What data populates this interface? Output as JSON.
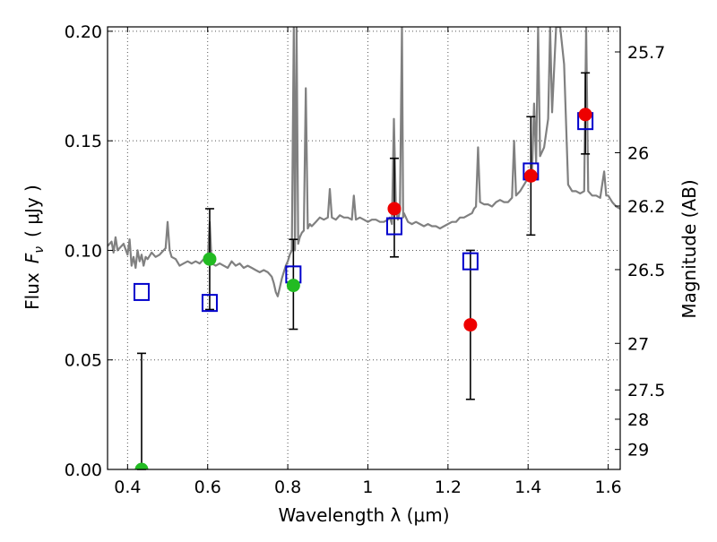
{
  "chart_data": {
    "type": "scatter",
    "xlabel": "Wavelength  λ (μm)",
    "ylabel": "Flux  F_ν  ( μJy )",
    "ylabel_parts": {
      "flux": "Flux",
      "symbol": "F",
      "subscript": "ν",
      "unit": "( μJy )"
    },
    "right_ylabel": "Magnitude (AB)",
    "xlim": [
      0.35,
      1.63
    ],
    "ylim": [
      0.0,
      0.202
    ],
    "grid": true,
    "x_ticks": [
      {
        "value": 0.4,
        "label": "0.4"
      },
      {
        "value": 0.6,
        "label": "0.6"
      },
      {
        "value": 0.8,
        "label": "0.8"
      },
      {
        "value": 1.0,
        "label": "1"
      },
      {
        "value": 1.2,
        "label": "1.2"
      },
      {
        "value": 1.4,
        "label": "1.4"
      },
      {
        "value": 1.6,
        "label": "1.6"
      }
    ],
    "y_ticks": [
      {
        "value": 0.0,
        "label": "0.00"
      },
      {
        "value": 0.05,
        "label": "0.05"
      },
      {
        "value": 0.1,
        "label": "0.10"
      },
      {
        "value": 0.15,
        "label": "0.15"
      },
      {
        "value": 0.2,
        "label": "0.20"
      }
    ],
    "right_ticks": [
      {
        "mag": 25.7,
        "label": "25.7"
      },
      {
        "mag": 26.0,
        "label": "26"
      },
      {
        "mag": 26.2,
        "label": "26.2"
      },
      {
        "mag": 26.5,
        "label": "26.5"
      },
      {
        "mag": 27.0,
        "label": "27"
      },
      {
        "mag": 27.5,
        "label": "27.5"
      },
      {
        "mag": 28.0,
        "label": "28"
      },
      {
        "mag": 29.0,
        "label": "29"
      }
    ],
    "colors": {
      "model": "#808080",
      "green": "#22bb22",
      "red": "#ee0000",
      "squares": "#0000cc",
      "errorbar": "#000000",
      "grid": "#555555"
    },
    "observed_points": [
      {
        "x": 0.435,
        "y": 0.0,
        "yerr_low": 0.0,
        "yerr_high": 0.053,
        "color": "green"
      },
      {
        "x": 0.605,
        "y": 0.096,
        "yerr_low": 0.073,
        "yerr_high": 0.119,
        "color": "green"
      },
      {
        "x": 0.814,
        "y": 0.084,
        "yerr_low": 0.064,
        "yerr_high": 0.105,
        "color": "green"
      },
      {
        "x": 1.066,
        "y": 0.119,
        "yerr_low": 0.097,
        "yerr_high": 0.142,
        "color": "red"
      },
      {
        "x": 1.256,
        "y": 0.066,
        "yerr_low": 0.032,
        "yerr_high": 0.1,
        "color": "red"
      },
      {
        "x": 1.407,
        "y": 0.134,
        "yerr_low": 0.107,
        "yerr_high": 0.161,
        "color": "red"
      },
      {
        "x": 1.543,
        "y": 0.162,
        "yerr_low": 0.144,
        "yerr_high": 0.181,
        "color": "red"
      }
    ],
    "model_points": [
      {
        "x": 0.435,
        "y": 0.081
      },
      {
        "x": 0.605,
        "y": 0.076
      },
      {
        "x": 0.814,
        "y": 0.089
      },
      {
        "x": 1.066,
        "y": 0.111
      },
      {
        "x": 1.256,
        "y": 0.095
      },
      {
        "x": 1.407,
        "y": 0.136
      },
      {
        "x": 1.543,
        "y": 0.159
      }
    ],
    "model_spectrum": [
      [
        0.35,
        0.102
      ],
      [
        0.36,
        0.104
      ],
      [
        0.365,
        0.099
      ],
      [
        0.37,
        0.106
      ],
      [
        0.375,
        0.1
      ],
      [
        0.38,
        0.101
      ],
      [
        0.39,
        0.103
      ],
      [
        0.4,
        0.098
      ],
      [
        0.405,
        0.105
      ],
      [
        0.41,
        0.093
      ],
      [
        0.415,
        0.097
      ],
      [
        0.42,
        0.092
      ],
      [
        0.425,
        0.1
      ],
      [
        0.43,
        0.095
      ],
      [
        0.435,
        0.098
      ],
      [
        0.44,
        0.093
      ],
      [
        0.445,
        0.097
      ],
      [
        0.45,
        0.096
      ],
      [
        0.46,
        0.099
      ],
      [
        0.47,
        0.097
      ],
      [
        0.48,
        0.098
      ],
      [
        0.49,
        0.1
      ],
      [
        0.495,
        0.101
      ],
      [
        0.5,
        0.113
      ],
      [
        0.505,
        0.1
      ],
      [
        0.51,
        0.097
      ],
      [
        0.52,
        0.096
      ],
      [
        0.53,
        0.093
      ],
      [
        0.54,
        0.094
      ],
      [
        0.55,
        0.095
      ],
      [
        0.56,
        0.094
      ],
      [
        0.57,
        0.095
      ],
      [
        0.58,
        0.094
      ],
      [
        0.59,
        0.096
      ],
      [
        0.6,
        0.095
      ],
      [
        0.605,
        0.113
      ],
      [
        0.61,
        0.094
      ],
      [
        0.62,
        0.093
      ],
      [
        0.63,
        0.094
      ],
      [
        0.64,
        0.093
      ],
      [
        0.65,
        0.092
      ],
      [
        0.66,
        0.095
      ],
      [
        0.67,
        0.093
      ],
      [
        0.68,
        0.094
      ],
      [
        0.69,
        0.092
      ],
      [
        0.7,
        0.093
      ],
      [
        0.71,
        0.092
      ],
      [
        0.72,
        0.091
      ],
      [
        0.73,
        0.09
      ],
      [
        0.74,
        0.091
      ],
      [
        0.75,
        0.09
      ],
      [
        0.76,
        0.088
      ],
      [
        0.765,
        0.085
      ],
      [
        0.77,
        0.081
      ],
      [
        0.775,
        0.079
      ],
      [
        0.78,
        0.083
      ],
      [
        0.785,
        0.087
      ],
      [
        0.79,
        0.09
      ],
      [
        0.795,
        0.093
      ],
      [
        0.8,
        0.095
      ],
      [
        0.805,
        0.098
      ],
      [
        0.81,
        0.1
      ],
      [
        0.815,
        0.202
      ],
      [
        0.818,
        0.1
      ],
      [
        0.822,
        0.202
      ],
      [
        0.826,
        0.103
      ],
      [
        0.83,
        0.106
      ],
      [
        0.835,
        0.108
      ],
      [
        0.84,
        0.109
      ],
      [
        0.845,
        0.174
      ],
      [
        0.85,
        0.11
      ],
      [
        0.855,
        0.112
      ],
      [
        0.86,
        0.111
      ],
      [
        0.87,
        0.113
      ],
      [
        0.88,
        0.115
      ],
      [
        0.89,
        0.114
      ],
      [
        0.9,
        0.115
      ],
      [
        0.905,
        0.128
      ],
      [
        0.91,
        0.115
      ],
      [
        0.92,
        0.114
      ],
      [
        0.93,
        0.116
      ],
      [
        0.94,
        0.115
      ],
      [
        0.95,
        0.115
      ],
      [
        0.96,
        0.114
      ],
      [
        0.965,
        0.125
      ],
      [
        0.97,
        0.114
      ],
      [
        0.98,
        0.115
      ],
      [
        0.99,
        0.114
      ],
      [
        1.0,
        0.113
      ],
      [
        1.01,
        0.114
      ],
      [
        1.02,
        0.114
      ],
      [
        1.03,
        0.113
      ],
      [
        1.04,
        0.113
      ],
      [
        1.05,
        0.114
      ],
      [
        1.055,
        0.115
      ],
      [
        1.06,
        0.112
      ],
      [
        1.065,
        0.16
      ],
      [
        1.07,
        0.118
      ],
      [
        1.075,
        0.114
      ],
      [
        1.08,
        0.118
      ],
      [
        1.085,
        0.202
      ],
      [
        1.088,
        0.115
      ],
      [
        1.09,
        0.117
      ],
      [
        1.1,
        0.113
      ],
      [
        1.11,
        0.112
      ],
      [
        1.12,
        0.113
      ],
      [
        1.13,
        0.112
      ],
      [
        1.14,
        0.111
      ],
      [
        1.15,
        0.112
      ],
      [
        1.16,
        0.111
      ],
      [
        1.17,
        0.111
      ],
      [
        1.18,
        0.11
      ],
      [
        1.19,
        0.111
      ],
      [
        1.2,
        0.112
      ],
      [
        1.21,
        0.113
      ],
      [
        1.22,
        0.113
      ],
      [
        1.23,
        0.115
      ],
      [
        1.24,
        0.115
      ],
      [
        1.25,
        0.116
      ],
      [
        1.26,
        0.117
      ],
      [
        1.265,
        0.119
      ],
      [
        1.27,
        0.12
      ],
      [
        1.275,
        0.147
      ],
      [
        1.28,
        0.122
      ],
      [
        1.29,
        0.121
      ],
      [
        1.3,
        0.121
      ],
      [
        1.31,
        0.12
      ],
      [
        1.32,
        0.122
      ],
      [
        1.33,
        0.123
      ],
      [
        1.34,
        0.122
      ],
      [
        1.35,
        0.122
      ],
      [
        1.36,
        0.124
      ],
      [
        1.365,
        0.15
      ],
      [
        1.37,
        0.125
      ],
      [
        1.38,
        0.127
      ],
      [
        1.39,
        0.13
      ],
      [
        1.4,
        0.133
      ],
      [
        1.41,
        0.137
      ],
      [
        1.415,
        0.167
      ],
      [
        1.42,
        0.14
      ],
      [
        1.425,
        0.202
      ],
      [
        1.43,
        0.143
      ],
      [
        1.44,
        0.147
      ],
      [
        1.45,
        0.16
      ],
      [
        1.455,
        0.202
      ],
      [
        1.46,
        0.163
      ],
      [
        1.465,
        0.183
      ],
      [
        1.47,
        0.202
      ],
      [
        1.48,
        0.202
      ],
      [
        1.49,
        0.185
      ],
      [
        1.5,
        0.13
      ],
      [
        1.51,
        0.127
      ],
      [
        1.52,
        0.127
      ],
      [
        1.53,
        0.126
      ],
      [
        1.54,
        0.127
      ],
      [
        1.545,
        0.202
      ],
      [
        1.55,
        0.127
      ],
      [
        1.56,
        0.125
      ],
      [
        1.57,
        0.125
      ],
      [
        1.58,
        0.124
      ],
      [
        1.59,
        0.136
      ],
      [
        1.595,
        0.125
      ],
      [
        1.6,
        0.125
      ],
      [
        1.61,
        0.122
      ],
      [
        1.62,
        0.12
      ],
      [
        1.63,
        0.119
      ]
    ]
  }
}
